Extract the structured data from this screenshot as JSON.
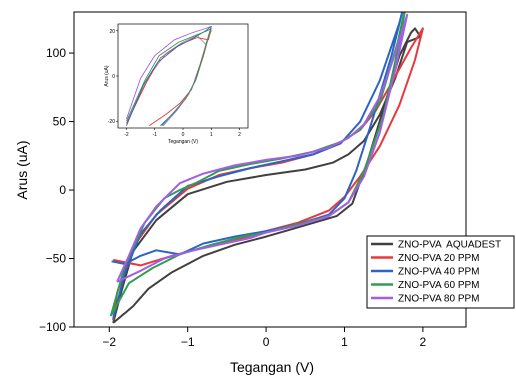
{
  "chart_data": {
    "type": "line",
    "xlabel": "Tegangan (V)",
    "ylabel": "Arus (uA)",
    "xlim": [
      -2.45,
      2.55
    ],
    "ylim": [
      -100,
      130
    ],
    "x_ticks": [
      -2,
      -1,
      0,
      1,
      2
    ],
    "x_tick_labels": [
      "−2",
      "−1",
      "0",
      "1",
      "2"
    ],
    "y_ticks": [
      -100,
      -50,
      0,
      50,
      100
    ],
    "y_tick_labels": [
      "−100",
      "−50",
      "0",
      "50",
      "100"
    ],
    "legend_position": "bottom-right",
    "grid": false,
    "series": [
      {
        "name": "ZNO-PVA  AQUADEST",
        "color": "#404040",
        "x": [
          -1.95,
          -1.7,
          -1.5,
          -1.2,
          -0.8,
          -0.4,
          0.0,
          0.3,
          0.6,
          0.9,
          1.1,
          1.3,
          1.5,
          1.7,
          1.85,
          1.9,
          1.97,
          1.8,
          1.65,
          1.45,
          1.25,
          1.05,
          0.85,
          0.5,
          0.0,
          -0.5,
          -1.0,
          -1.4,
          -1.7,
          -1.85,
          -1.95
        ],
        "y": [
          -97,
          -85,
          -72,
          -60,
          -48,
          -40,
          -34,
          -29,
          -24,
          -19,
          -10,
          22,
          60,
          98,
          115,
          118,
          112,
          108,
          82,
          55,
          36,
          26,
          20,
          15,
          11,
          6,
          -3,
          -22,
          -45,
          -75,
          -97
        ]
      },
      {
        "name": "ZNO-PVA 20 PPM",
        "color": "#e8383d",
        "x": [
          -1.95,
          -1.6,
          -1.2,
          -0.8,
          -0.4,
          0.0,
          0.4,
          0.8,
          1.0,
          1.2,
          1.45,
          1.7,
          1.9,
          2.0,
          1.85,
          1.6,
          1.4,
          1.2,
          0.9,
          0.6,
          0.2,
          -0.2,
          -0.6,
          -1.0,
          -1.4,
          -1.7,
          -1.9,
          -1.95
        ],
        "y": [
          -51,
          -55,
          -48,
          -42,
          -37,
          -30,
          -24,
          -15,
          -5,
          10,
          32,
          62,
          95,
          118,
          104,
          78,
          58,
          44,
          33,
          26,
          20,
          16,
          11,
          1,
          -18,
          -42,
          -75,
          -95
        ]
      },
      {
        "name": "ZNO-PVA 40 PPM",
        "color": "#2a64c4",
        "x": [
          -1.97,
          -1.8,
          -1.6,
          -1.4,
          -1.1,
          -0.8,
          -0.4,
          0.0,
          0.4,
          0.8,
          1.0,
          1.15,
          1.35,
          1.6,
          1.78,
          1.7,
          1.45,
          1.2,
          0.95,
          0.6,
          0.2,
          -0.2,
          -0.6,
          -1.0,
          -1.35,
          -1.6,
          -1.8,
          -1.95
        ],
        "y": [
          -52,
          -54,
          -48,
          -44,
          -47,
          -39,
          -34,
          -30,
          -25,
          -18,
          -6,
          14,
          50,
          98,
          140,
          122,
          80,
          50,
          34,
          26,
          21,
          16,
          10,
          3,
          -15,
          -32,
          -60,
          -94
        ]
      },
      {
        "name": "ZNO-PVA 60 PPM",
        "color": "#2f9e4f",
        "x": [
          -1.98,
          -1.75,
          -1.45,
          -1.1,
          -0.7,
          -0.3,
          0.0,
          0.4,
          0.8,
          1.05,
          1.25,
          1.5,
          1.7,
          1.8,
          1.68,
          1.45,
          1.2,
          0.95,
          0.6,
          0.2,
          -0.2,
          -0.6,
          -0.9,
          -1.1,
          -1.3,
          -1.55,
          -1.8,
          -1.98
        ],
        "y": [
          -92,
          -68,
          -57,
          -47,
          -40,
          -34,
          -31,
          -25,
          -19,
          -9,
          14,
          55,
          108,
          140,
          108,
          64,
          44,
          35,
          28,
          23,
          19,
          14,
          5,
          0,
          -6,
          -24,
          -55,
          -92
        ]
      },
      {
        "name": "ZNO-PVA 80 PPM",
        "color": "#a45ee5",
        "x": [
          -1.9,
          -1.6,
          -1.3,
          -1.0,
          -0.6,
          -0.2,
          0.0,
          0.4,
          0.8,
          1.05,
          1.25,
          1.45,
          1.65,
          1.8,
          1.65,
          1.45,
          1.25,
          1.05,
          0.8,
          0.4,
          0.0,
          -0.4,
          -0.8,
          -1.1,
          -1.4,
          -1.6,
          -1.75,
          -1.9
        ],
        "y": [
          -67,
          -59,
          -50,
          -45,
          -40,
          -35,
          -31,
          -26,
          -19,
          -9,
          10,
          42,
          88,
          128,
          100,
          68,
          48,
          38,
          31,
          25,
          22,
          18,
          12,
          5,
          -12,
          -28,
          -48,
          -67
        ]
      }
    ],
    "inset": {
      "xlabel": "Tegangan (V)",
      "ylabel": "Arus (uA)",
      "xlim": [
        -2.3,
        2.3
      ],
      "ylim": [
        -23,
        23
      ],
      "x_ticks": [
        -2,
        -1,
        0,
        1,
        2
      ],
      "x_tick_labels": [
        "-2",
        "-1",
        "0",
        "1",
        "2"
      ],
      "y_ticks": [
        -20,
        0,
        20
      ],
      "y_tick_labels": [
        "-20",
        "0",
        "20"
      ],
      "series": [
        {
          "color": "#9a9a9a",
          "x": [
            -2.0,
            -1.2,
            -0.6,
            0.0,
            0.5,
            0.8,
            1.0
          ],
          "y": [
            -20,
            0,
            10,
            15,
            18,
            14,
            20
          ]
        },
        {
          "color": "#e8383d",
          "x": [
            -2.0,
            -1.3,
            -0.8,
            -0.1,
            0.5,
            0.9,
            1.0
          ],
          "y": [
            -21,
            -3,
            8,
            14,
            17,
            16,
            21
          ]
        },
        {
          "color": "#2a64c4",
          "x": [
            -2.0,
            -1.4,
            -0.9,
            -0.2,
            0.4,
            0.8,
            1.0
          ],
          "y": [
            -22,
            -4,
            6,
            13,
            17,
            20,
            22
          ]
        },
        {
          "color": "#2f9e4f",
          "x": [
            -2.0,
            -1.35,
            -0.85,
            -0.15,
            0.45,
            0.85,
            1.0
          ],
          "y": [
            -20,
            -2,
            9,
            15,
            18,
            20,
            21
          ]
        },
        {
          "color": "#a45ee5",
          "x": [
            -2.0,
            -1.5,
            -1.0,
            -0.3,
            0.3,
            0.8,
            1.0
          ],
          "y": [
            -19,
            -1,
            9,
            16,
            19,
            21,
            22
          ]
        },
        {
          "color": "#e8383d",
          "x": [
            -1.2,
            -0.6,
            -0.1,
            0.3,
            0.6,
            1.0
          ],
          "y": [
            -22,
            -17,
            -12,
            -6,
            5,
            22
          ]
        },
        {
          "color": "#2a64c4",
          "x": [
            -0.8,
            -0.3,
            0.1,
            0.4,
            0.7,
            1.0
          ],
          "y": [
            -22,
            -16,
            -10,
            -3,
            8,
            22
          ]
        },
        {
          "color": "#a45ee5",
          "x": [
            -0.7,
            -0.2,
            0.2,
            0.5,
            0.75,
            1.0
          ],
          "y": [
            -22,
            -15,
            -8,
            0,
            10,
            22
          ]
        },
        {
          "color": "#2f9e4f",
          "x": [
            -0.75,
            -0.25,
            0.15,
            0.45,
            0.72,
            1.0
          ],
          "y": [
            -22,
            -15,
            -9,
            -2,
            9,
            22
          ]
        }
      ]
    }
  }
}
